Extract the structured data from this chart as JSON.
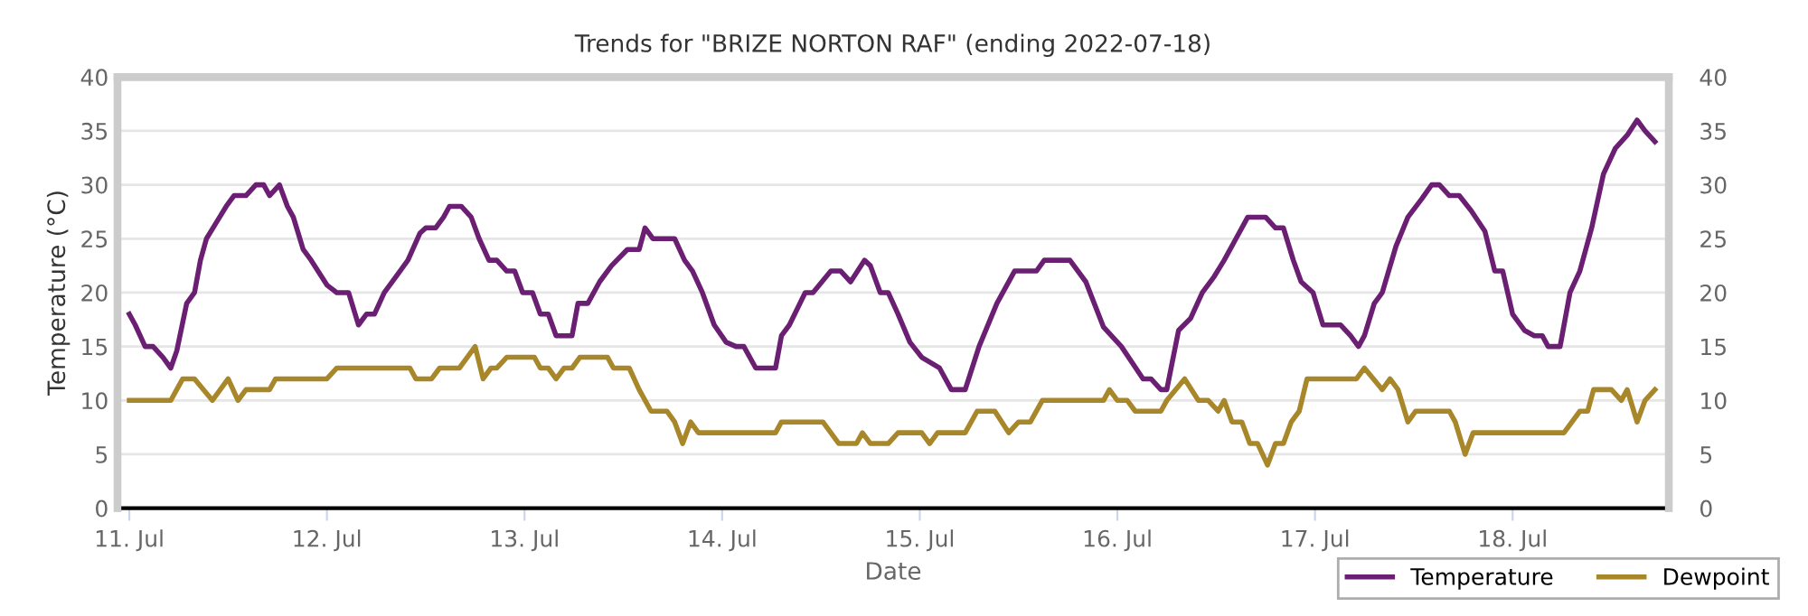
{
  "chart_data": {
    "type": "line",
    "title": "Trends for \"BRIZE NORTON RAF\" (ending 2022-07-18)",
    "xlabel": "Date",
    "ylabel": "Temperature (°C)",
    "xlim": [
      "2022-07-10T22:34",
      "2022-07-18T18:58"
    ],
    "xticks": [
      {
        "value": "2022-07-11",
        "label": "11. Jul"
      },
      {
        "value": "2022-07-12",
        "label": "12. Jul"
      },
      {
        "value": "2022-07-13",
        "label": "13. Jul"
      },
      {
        "value": "2022-07-14",
        "label": "14. Jul"
      },
      {
        "value": "2022-07-15",
        "label": "15. Jul"
      },
      {
        "value": "2022-07-16",
        "label": "16. Jul"
      },
      {
        "value": "2022-07-17",
        "label": "17. Jul"
      },
      {
        "value": "2022-07-18",
        "label": "18. Jul"
      }
    ],
    "ylim": [
      0,
      40
    ],
    "yticks": [
      0,
      5,
      10,
      15,
      20,
      25,
      30,
      35,
      40
    ],
    "y2lim": [
      0,
      40
    ],
    "y2ticks": [
      0,
      5,
      10,
      15,
      20,
      25,
      30,
      35,
      40
    ],
    "grid": "y",
    "legend": "bottom right",
    "marker": "none",
    "line_style": "solid",
    "series": [
      {
        "name": "Temperature",
        "color": "#6b1f73",
        "x": [
          "2022-07-11T00:00",
          "2022-07-11T00:43",
          "2022-07-11T01:55",
          "2022-07-11T02:53",
          "2022-07-11T04:05",
          "2022-07-11T05:02",
          "2022-07-11T05:46",
          "2022-07-11T06:58",
          "2022-07-11T07:55",
          "2022-07-11T08:38",
          "2022-07-11T09:22",
          "2022-07-11T10:34",
          "2022-07-11T11:46",
          "2022-07-11T12:43",
          "2022-07-11T14:10",
          "2022-07-11T15:22",
          "2022-07-11T16:19",
          "2022-07-11T17:02",
          "2022-07-11T18:14",
          "2022-07-11T19:12",
          "2022-07-11T19:55",
          "2022-07-11T21:07",
          "2022-07-11T22:05",
          "2022-07-12T00:00",
          "2022-07-12T01:12",
          "2022-07-12T02:38",
          "2022-07-12T03:50",
          "2022-07-12T04:48",
          "2022-07-12T05:46",
          "2022-07-12T06:58",
          "2022-07-12T08:24",
          "2022-07-12T09:50",
          "2022-07-12T11:17",
          "2022-07-12T12:00",
          "2022-07-12T13:12",
          "2022-07-12T14:10",
          "2022-07-12T14:53",
          "2022-07-12T16:19",
          "2022-07-12T17:31",
          "2022-07-12T18:29",
          "2022-07-12T19:41",
          "2022-07-12T20:38",
          "2022-07-12T21:50",
          "2022-07-12T22:48",
          "2022-07-12T23:46",
          "2022-07-13T00:58",
          "2022-07-13T01:55",
          "2022-07-13T02:53",
          "2022-07-13T03:50",
          "2022-07-13T05:46",
          "2022-07-13T06:29",
          "2022-07-13T07:41",
          "2022-07-13T09:07",
          "2022-07-13T10:34",
          "2022-07-13T12:29",
          "2022-07-13T13:55",
          "2022-07-13T14:38",
          "2022-07-13T15:36",
          "2022-07-13T17:02",
          "2022-07-13T18:14",
          "2022-07-13T19:26",
          "2022-07-13T20:24",
          "2022-07-13T21:36",
          "2022-07-13T23:02",
          "2022-07-14T00:29",
          "2022-07-14T01:41",
          "2022-07-14T02:38",
          "2022-07-14T04:05",
          "2022-07-14T06:29",
          "2022-07-14T07:12",
          "2022-07-14T08:10",
          "2022-07-14T10:05",
          "2022-07-14T11:02",
          "2022-07-14T13:12",
          "2022-07-14T14:24",
          "2022-07-14T15:36",
          "2022-07-14T17:17",
          "2022-07-14T18:00",
          "2022-07-14T19:12",
          "2022-07-14T20:10",
          "2022-07-14T21:22",
          "2022-07-14T22:48",
          "2022-07-15T00:14",
          "2022-07-15T02:24",
          "2022-07-15T03:50",
          "2022-07-15T05:31",
          "2022-07-15T07:12",
          "2022-07-15T09:22",
          "2022-07-15T11:31",
          "2022-07-15T14:10",
          "2022-07-15T15:07",
          "2022-07-15T18:14",
          "2022-07-15T20:10",
          "2022-07-15T22:19",
          "2022-07-16T00:29",
          "2022-07-16T03:07",
          "2022-07-16T04:05",
          "2022-07-16T05:17",
          "2022-07-16T06:00",
          "2022-07-16T07:26",
          "2022-07-16T08:53",
          "2022-07-16T10:19",
          "2022-07-16T11:46",
          "2022-07-16T12:58",
          "2022-07-16T14:24",
          "2022-07-16T15:50",
          "2022-07-16T18:00",
          "2022-07-16T19:12",
          "2022-07-16T20:10",
          "2022-07-16T21:22",
          "2022-07-16T22:19",
          "2022-07-16T23:46",
          "2022-07-17T00:58",
          "2022-07-17T03:07",
          "2022-07-17T04:19",
          "2022-07-17T05:17",
          "2022-07-17T06:00",
          "2022-07-17T07:12",
          "2022-07-17T08:10",
          "2022-07-17T09:50",
          "2022-07-17T11:17",
          "2022-07-17T12:58",
          "2022-07-17T14:10",
          "2022-07-17T15:07",
          "2022-07-17T16:19",
          "2022-07-17T17:31",
          "2022-07-17T18:58",
          "2022-07-17T20:38",
          "2022-07-17T21:50",
          "2022-07-17T22:48",
          "2022-07-18T00:00",
          "2022-07-18T01:26",
          "2022-07-18T02:38",
          "2022-07-18T03:36",
          "2022-07-18T04:19",
          "2022-07-18T05:46",
          "2022-07-18T06:58",
          "2022-07-18T08:10",
          "2022-07-18T09:36",
          "2022-07-18T11:02",
          "2022-07-18T12:29",
          "2022-07-18T13:55",
          "2022-07-18T15:07",
          "2022-07-18T16:05",
          "2022-07-18T17:17"
        ],
        "values": [
          18,
          17,
          15,
          15,
          14,
          13,
          14.6,
          19,
          20,
          23,
          25,
          26.5,
          28,
          29,
          29,
          30,
          30,
          29,
          30,
          28,
          27,
          24,
          23,
          20.7,
          20,
          20,
          17,
          18,
          18,
          20,
          21.5,
          23,
          25.5,
          26,
          26,
          27,
          28,
          28,
          27,
          25,
          23,
          23,
          22,
          22,
          20,
          20,
          18,
          18,
          16,
          16,
          19,
          19,
          21,
          22.5,
          24,
          24,
          26,
          25,
          25,
          25,
          23,
          22,
          20,
          17,
          15.4,
          15,
          15,
          13,
          13,
          16,
          17,
          20,
          20,
          22,
          22,
          21,
          23,
          22.5,
          20,
          20,
          18,
          15.4,
          14,
          13,
          11,
          11,
          15,
          19,
          22,
          22,
          23,
          23,
          21,
          16.8,
          15,
          12,
          12,
          11,
          11,
          16.5,
          17.6,
          20,
          21.5,
          23,
          25,
          27,
          27,
          26,
          26,
          23,
          21,
          20,
          17,
          17,
          16,
          15,
          16,
          19,
          20,
          24.3,
          27,
          28.7,
          30,
          30,
          29,
          29,
          27.6,
          25.7,
          22,
          22,
          18,
          16.5,
          16,
          16,
          15,
          15,
          20,
          22,
          26,
          31,
          33.4,
          34.6,
          36,
          35,
          34
        ]
      },
      {
        "name": "Dewpoint",
        "color": "#a8862a",
        "x": [
          "2022-07-11T00:00",
          "2022-07-11T05:02",
          "2022-07-11T06:29",
          "2022-07-11T07:55",
          "2022-07-11T10:05",
          "2022-07-11T12:00",
          "2022-07-11T13:12",
          "2022-07-11T14:10",
          "2022-07-11T17:02",
          "2022-07-11T17:46",
          "2022-07-12T00:00",
          "2022-07-12T01:12",
          "2022-07-12T10:05",
          "2022-07-12T10:48",
          "2022-07-12T12:43",
          "2022-07-12T13:41",
          "2022-07-12T16:05",
          "2022-07-12T18:00",
          "2022-07-12T18:58",
          "2022-07-12T19:55",
          "2022-07-12T20:38",
          "2022-07-12T21:50",
          "2022-07-13T01:12",
          "2022-07-13T01:55",
          "2022-07-13T02:53",
          "2022-07-13T03:50",
          "2022-07-13T04:48",
          "2022-07-13T05:46",
          "2022-07-13T06:43",
          "2022-07-13T10:05",
          "2022-07-13T10:48",
          "2022-07-13T12:43",
          "2022-07-13T13:55",
          "2022-07-13T15:22",
          "2022-07-13T17:17",
          "2022-07-13T18:14",
          "2022-07-13T19:12",
          "2022-07-13T20:10",
          "2022-07-13T21:07",
          "2022-07-14T06:29",
          "2022-07-14T07:12",
          "2022-07-14T12:14",
          "2022-07-14T14:10",
          "2022-07-14T16:19",
          "2022-07-14T17:02",
          "2022-07-14T18:00",
          "2022-07-14T20:10",
          "2022-07-14T21:22",
          "2022-07-15T00:14",
          "2022-07-15T01:12",
          "2022-07-15T02:10",
          "2022-07-15T05:31",
          "2022-07-15T06:58",
          "2022-07-15T09:07",
          "2022-07-15T10:48",
          "2022-07-15T12:00",
          "2022-07-15T13:26",
          "2022-07-15T14:53",
          "2022-07-15T22:19",
          "2022-07-15T23:02",
          "2022-07-16T00:00",
          "2022-07-16T01:12",
          "2022-07-16T02:10",
          "2022-07-16T05:17",
          "2022-07-16T06:00",
          "2022-07-16T08:10",
          "2022-07-16T09:50",
          "2022-07-16T11:02",
          "2022-07-16T12:14",
          "2022-07-16T12:58",
          "2022-07-16T13:55",
          "2022-07-16T15:07",
          "2022-07-16T16:05",
          "2022-07-16T17:02",
          "2022-07-16T18:14",
          "2022-07-16T19:12",
          "2022-07-16T20:10",
          "2022-07-16T21:07",
          "2022-07-16T22:05",
          "2022-07-16T23:02",
          "2022-07-17T05:02",
          "2022-07-17T06:00",
          "2022-07-17T08:10",
          "2022-07-17T09:07",
          "2022-07-17T10:05",
          "2022-07-17T11:17",
          "2022-07-17T12:14",
          "2022-07-17T16:19",
          "2022-07-17T17:02",
          "2022-07-17T18:14",
          "2022-07-17T19:12",
          "2022-07-18T06:14",
          "2022-07-18T08:10",
          "2022-07-18T09:07",
          "2022-07-18T09:50",
          "2022-07-18T12:00",
          "2022-07-18T13:12",
          "2022-07-18T13:55",
          "2022-07-18T15:07",
          "2022-07-18T16:05",
          "2022-07-18T17:17"
        ],
        "values": [
          10,
          10,
          12,
          12,
          10,
          12,
          10,
          11,
          11,
          12,
          12,
          13,
          13,
          12,
          12,
          13,
          13,
          15,
          12,
          13,
          13,
          14,
          14,
          13,
          13,
          12,
          13,
          13,
          14,
          14,
          13,
          13,
          11,
          9,
          9,
          8,
          6,
          8,
          7,
          7,
          8,
          8,
          6,
          6,
          7,
          6,
          6,
          7,
          7,
          6,
          7,
          7,
          9,
          9,
          7,
          8,
          8,
          10,
          10,
          11,
          10,
          10,
          9,
          9,
          10,
          12,
          10,
          10,
          9,
          10,
          8,
          8,
          6,
          6,
          4,
          6,
          6,
          8,
          9,
          12,
          12,
          13,
          11,
          12,
          11,
          8,
          9,
          9,
          8,
          5,
          7,
          7,
          9,
          9,
          11,
          11,
          10,
          11,
          8,
          10,
          11
        ]
      }
    ]
  }
}
